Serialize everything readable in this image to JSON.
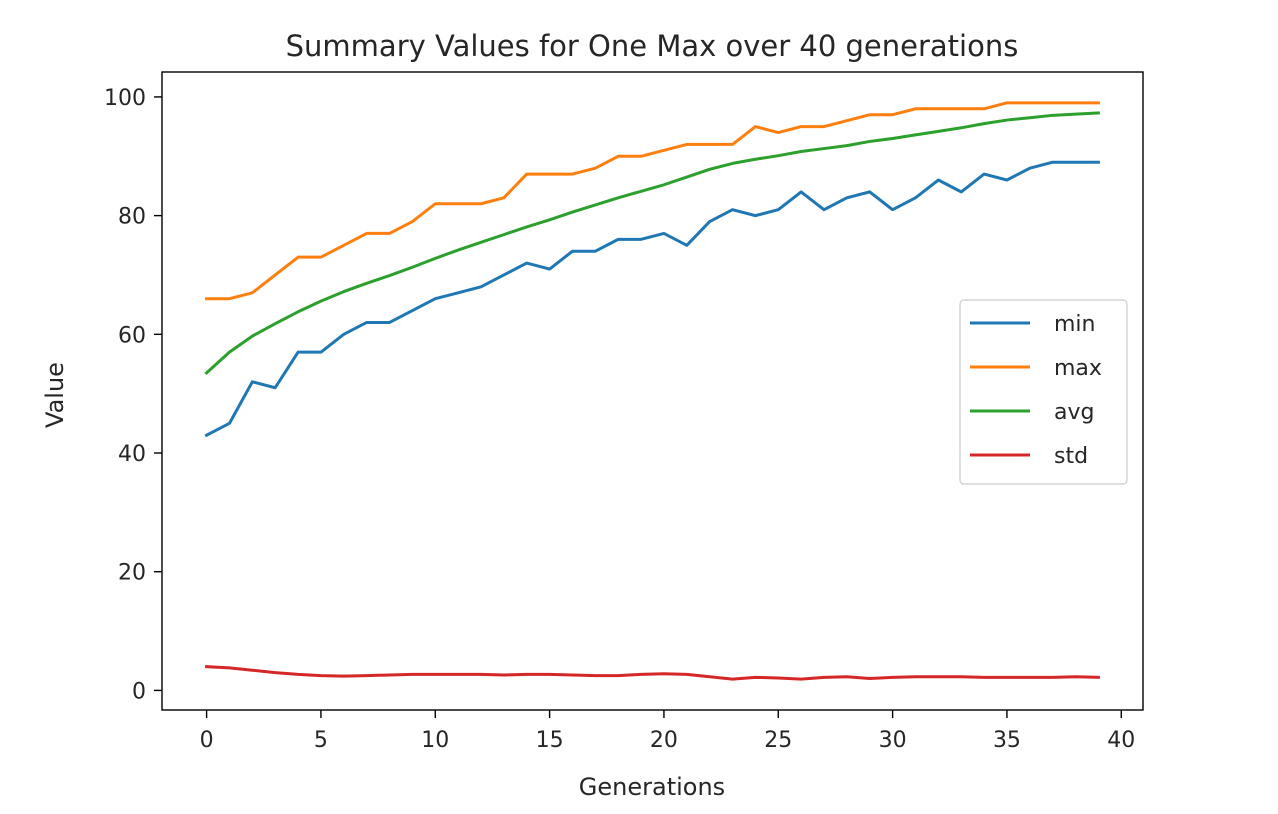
{
  "chart_data": {
    "type": "line",
    "title": "Summary Values for One Max over 40 generations",
    "xlabel": "Generations",
    "ylabel": "Value",
    "xlim": [
      -1.95,
      40.95
    ],
    "ylim": [
      -3.3,
      104.2
    ],
    "xticks": [
      0,
      5,
      10,
      15,
      20,
      25,
      30,
      35,
      40
    ],
    "yticks": [
      0,
      20,
      40,
      60,
      80,
      100
    ],
    "grid": false,
    "legend_position": "center-right",
    "x": [
      0,
      1,
      2,
      3,
      4,
      5,
      6,
      7,
      8,
      9,
      10,
      11,
      12,
      13,
      14,
      15,
      16,
      17,
      18,
      19,
      20,
      21,
      22,
      23,
      24,
      25,
      26,
      27,
      28,
      29,
      30,
      31,
      32,
      33,
      34,
      35,
      36,
      37,
      38,
      39
    ],
    "series": [
      {
        "name": "min",
        "color": "#1f77b4",
        "values": [
          43,
          45,
          52,
          51,
          57,
          57,
          60,
          62,
          62,
          64,
          66,
          67,
          68,
          70,
          72,
          71,
          74,
          74,
          76,
          76,
          77,
          75,
          79,
          81,
          80,
          81,
          84,
          81,
          83,
          84,
          81,
          83,
          86,
          84,
          87,
          86,
          88,
          89,
          89,
          89
        ]
      },
      {
        "name": "max",
        "color": "#ff7f0e",
        "values": [
          66,
          66,
          67,
          70,
          73,
          73,
          75,
          77,
          77,
          79,
          82,
          82,
          82,
          83,
          87,
          87,
          87,
          88,
          90,
          90,
          91,
          92,
          92,
          92,
          95,
          94,
          95,
          95,
          96,
          97,
          97,
          98,
          98,
          98,
          98,
          99,
          99,
          99,
          99,
          99
        ]
      },
      {
        "name": "avg",
        "color": "#2ca02c",
        "values": [
          53.5,
          57,
          59.7,
          61.8,
          63.8,
          65.6,
          67.2,
          68.6,
          69.9,
          71.3,
          72.8,
          74.2,
          75.5,
          76.8,
          78.1,
          79.3,
          80.6,
          81.8,
          83,
          84.1,
          85.2,
          86.5,
          87.8,
          88.8,
          89.5,
          90.1,
          90.8,
          91.3,
          91.8,
          92.5,
          93,
          93.6,
          94.2,
          94.8,
          95.5,
          96.1,
          96.5,
          96.9,
          97.1,
          97.3
        ]
      },
      {
        "name": "std",
        "color": "#d62728",
        "values": [
          4,
          3.8,
          3.4,
          3,
          2.7,
          2.5,
          2.4,
          2.5,
          2.6,
          2.7,
          2.7,
          2.7,
          2.7,
          2.6,
          2.7,
          2.7,
          2.6,
          2.5,
          2.5,
          2.7,
          2.8,
          2.7,
          2.3,
          1.9,
          2.2,
          2.1,
          1.9,
          2.2,
          2.3,
          2,
          2.2,
          2.3,
          2.3,
          2.3,
          2.2,
          2.2,
          2.2,
          2.2,
          2.3,
          2.2
        ]
      }
    ]
  }
}
